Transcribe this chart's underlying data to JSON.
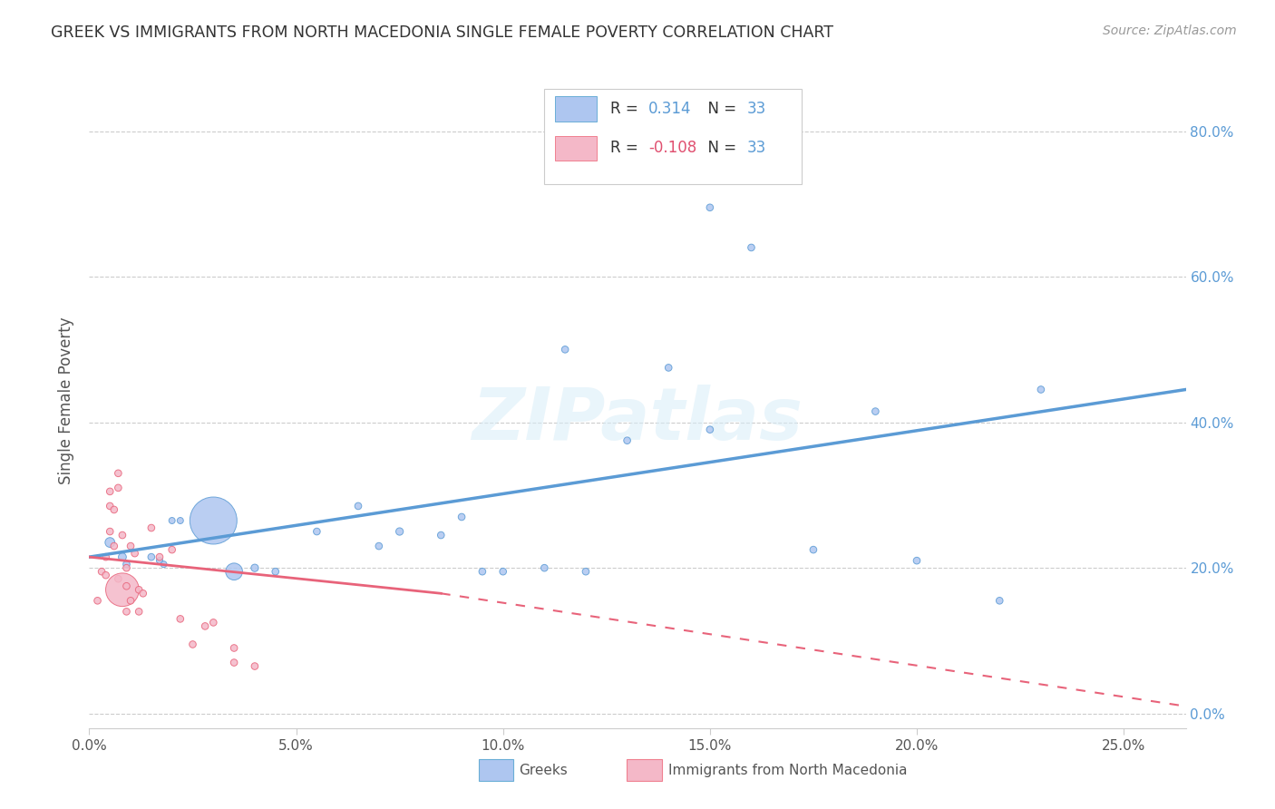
{
  "title": "GREEK VS IMMIGRANTS FROM NORTH MACEDONIA SINGLE FEMALE POVERTY CORRELATION CHART",
  "source": "Source: ZipAtlas.com",
  "xlabel_ticks": [
    "0.0%",
    "5.0%",
    "10.0%",
    "15.0%",
    "20.0%",
    "25.0%"
  ],
  "ylabel_label": "Single Female Poverty",
  "xlim": [
    0.0,
    0.265
  ],
  "ylim": [
    -0.02,
    0.88
  ],
  "watermark": "ZIPatlas",
  "legend_entries": [
    {
      "color": "#aec6f0",
      "edge": "#6aaed6",
      "R": "0.314",
      "N": "33",
      "label": "Greeks"
    },
    {
      "color": "#f4b8c8",
      "edge": "#f08090",
      "R": "-0.108",
      "N": "33",
      "label": "Immigrants from North Macedonia"
    }
  ],
  "blue_scatter": {
    "x": [
      0.005,
      0.008,
      0.009,
      0.015,
      0.017,
      0.018,
      0.02,
      0.022,
      0.03,
      0.035,
      0.04,
      0.045,
      0.055,
      0.065,
      0.07,
      0.075,
      0.085,
      0.09,
      0.095,
      0.1,
      0.11,
      0.115,
      0.12,
      0.13,
      0.14,
      0.15,
      0.15,
      0.16,
      0.175,
      0.19,
      0.2,
      0.22,
      0.23
    ],
    "y": [
      0.235,
      0.215,
      0.205,
      0.215,
      0.21,
      0.205,
      0.265,
      0.265,
      0.265,
      0.195,
      0.2,
      0.195,
      0.25,
      0.285,
      0.23,
      0.25,
      0.245,
      0.27,
      0.195,
      0.195,
      0.2,
      0.5,
      0.195,
      0.375,
      0.475,
      0.39,
      0.695,
      0.64,
      0.225,
      0.415,
      0.21,
      0.155,
      0.445
    ],
    "sizes": [
      60,
      40,
      30,
      30,
      25,
      25,
      25,
      25,
      1400,
      180,
      35,
      30,
      30,
      30,
      30,
      35,
      30,
      30,
      30,
      30,
      30,
      30,
      30,
      30,
      30,
      30,
      30,
      30,
      30,
      30,
      30,
      30,
      30
    ]
  },
  "pink_scatter": {
    "x": [
      0.002,
      0.003,
      0.004,
      0.004,
      0.005,
      0.005,
      0.005,
      0.006,
      0.006,
      0.007,
      0.007,
      0.007,
      0.008,
      0.008,
      0.009,
      0.009,
      0.009,
      0.01,
      0.01,
      0.011,
      0.012,
      0.012,
      0.013,
      0.015,
      0.017,
      0.02,
      0.022,
      0.025,
      0.028,
      0.03,
      0.035,
      0.035,
      0.04
    ],
    "y": [
      0.155,
      0.195,
      0.215,
      0.19,
      0.305,
      0.285,
      0.25,
      0.28,
      0.23,
      0.33,
      0.31,
      0.185,
      0.245,
      0.17,
      0.2,
      0.175,
      0.14,
      0.23,
      0.155,
      0.22,
      0.17,
      0.14,
      0.165,
      0.255,
      0.215,
      0.225,
      0.13,
      0.095,
      0.12,
      0.125,
      0.09,
      0.07,
      0.065
    ],
    "sizes": [
      30,
      30,
      30,
      30,
      30,
      30,
      30,
      30,
      30,
      30,
      30,
      30,
      30,
      700,
      30,
      30,
      30,
      30,
      30,
      30,
      30,
      30,
      30,
      30,
      30,
      30,
      30,
      30,
      30,
      30,
      30,
      30,
      30
    ]
  },
  "blue_line": {
    "x": [
      0.0,
      0.265
    ],
    "y": [
      0.215,
      0.445
    ]
  },
  "pink_line_solid": {
    "x": [
      0.0,
      0.085
    ],
    "y": [
      0.215,
      0.165
    ]
  },
  "pink_line_dash": {
    "x": [
      0.085,
      0.265
    ],
    "y": [
      0.165,
      0.01
    ]
  },
  "blue_color": "#5b9bd5",
  "pink_color": "#e8637a",
  "blue_fill": "#aec6f0",
  "pink_fill": "#f4b8c8",
  "grid_color": "#cccccc",
  "title_color": "#333333",
  "axis_label_color": "#555555",
  "tick_color_right": "#5b9bd5",
  "background_color": "#ffffff",
  "ytick_vals": [
    0.0,
    0.2,
    0.4,
    0.6,
    0.8
  ],
  "ytick_labels": [
    "0.0%",
    "20.0%",
    "40.0%",
    "60.0%",
    "80.0%"
  ],
  "xtick_vals": [
    0.0,
    0.05,
    0.1,
    0.15,
    0.2,
    0.25
  ],
  "xtick_labels": [
    "0.0%",
    "5.0%",
    "10.0%",
    "15.0%",
    "20.0%",
    "25.0%"
  ]
}
